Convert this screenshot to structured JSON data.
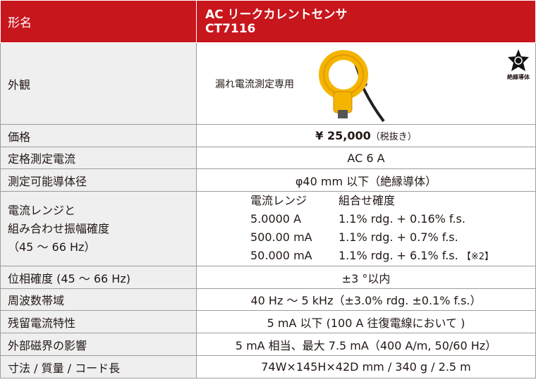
{
  "header": {
    "label": "形名",
    "title": [
      "AC リークカレントセンサ",
      "CT7116"
    ]
  },
  "appearance": {
    "label": "外観",
    "caption": "漏れ電流測定専用",
    "badge": "絶縁導体"
  },
  "price": {
    "label": "価格",
    "value": "¥ 25,000",
    "note": "（税抜き）"
  },
  "rows_a": [
    {
      "label": "定格測定電流",
      "value": "AC 6 A"
    },
    {
      "label": "測定可能導体径",
      "value": "φ40 mm 以下（絶縁導体）"
    }
  ],
  "range": {
    "label": [
      "電流レンジと",
      "組み合わせ振幅確度",
      "（45 ～ 66 Hz）"
    ],
    "columns": [
      "電流レンジ",
      "組合せ確度"
    ],
    "rows": [
      [
        "5.0000 A",
        "1.1% rdg. + 0.16% f.s."
      ],
      [
        "500.00 mA",
        "1.1% rdg. + 0.7% f.s."
      ],
      [
        "50.000 mA",
        "1.1% rdg. + 6.1% f.s."
      ]
    ],
    "note": "【※2】"
  },
  "rows_b": [
    {
      "label": "位相確度 (45 ～ 66 Hz)",
      "value": "±3 °以内"
    },
    {
      "label": "周波数帯域",
      "value": "40 Hz ～ 5 kHz（±3.0% rdg. ±0.1% f.s.）"
    },
    {
      "label": "残留電流特性",
      "value": "5 mA 以下 (100 A 往復電線において )"
    },
    {
      "label": "外部磁界の影響",
      "value": "5 mA 相当、最大 7.5 mA（400 A/m, 50/60 Hz）"
    },
    {
      "label": "寸法 / 質量 / コード長",
      "value": "74W×145H×42D mm / 340 g / 2.5 m"
    }
  ]
}
